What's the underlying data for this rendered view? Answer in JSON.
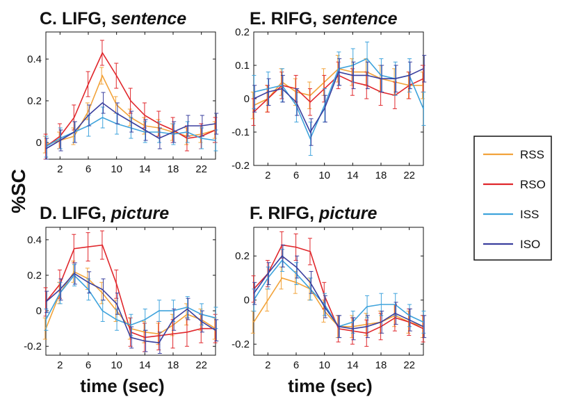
{
  "figure": {
    "ylabel": "%SC",
    "xlabel": "time (sec)",
    "legend": {
      "placement": "right",
      "entries": [
        "RSS",
        "RSO",
        "ISS",
        "ISO"
      ]
    }
  },
  "colors": {
    "RSS": "#f2a33a",
    "RSO": "#e0262b",
    "ISS": "#3ea3dc",
    "ISO": "#3a3f9e"
  },
  "chart_data": [
    {
      "type": "line",
      "title_main": "C.  LIFG, ",
      "title_italic": "sentence",
      "xlim": [
        0,
        24
      ],
      "ylim": [
        -0.08,
        0.53
      ],
      "xticks": [
        2,
        6,
        10,
        14,
        18,
        22
      ],
      "yticks": [
        0,
        0.2,
        0.4
      ],
      "ytick_labels": [
        "0",
        "0.2",
        "0.4"
      ],
      "x": [
        0,
        2,
        4,
        6,
        8,
        10,
        12,
        14,
        16,
        18,
        20,
        22,
        24
      ],
      "series": [
        {
          "name": "RSS",
          "values": [
            -0.01,
            0.01,
            0.03,
            0.15,
            0.32,
            0.18,
            0.12,
            0.08,
            0.07,
            0.05,
            0.03,
            0.04,
            0.06
          ],
          "err": 0.04
        },
        {
          "name": "RSO",
          "values": [
            -0.02,
            0.03,
            0.12,
            0.28,
            0.43,
            0.32,
            0.2,
            0.13,
            0.09,
            0.06,
            0.02,
            0.03,
            0.06
          ],
          "err": 0.06
        },
        {
          "name": "ISS",
          "values": [
            -0.02,
            0.02,
            0.05,
            0.08,
            0.12,
            0.09,
            0.07,
            0.05,
            0.05,
            0.04,
            0.05,
            0.02,
            0.01
          ],
          "err": 0.05
        },
        {
          "name": "ISO",
          "values": [
            -0.03,
            0.01,
            0.05,
            0.13,
            0.19,
            0.14,
            0.1,
            0.06,
            0.02,
            0.05,
            0.08,
            0.08,
            0.09
          ],
          "err": 0.05
        }
      ]
    },
    {
      "type": "line",
      "title_main": "E.  RIFG, ",
      "title_italic": "sentence",
      "xlim": [
        0,
        24
      ],
      "ylim": [
        -0.2,
        0.2
      ],
      "xticks": [
        2,
        6,
        10,
        14,
        18,
        22
      ],
      "yticks": [
        -0.2,
        -0.1,
        0,
        0.1,
        0.2
      ],
      "ytick_labels": [
        "-0.2",
        "-0.1",
        "0",
        "0.1",
        "0.2"
      ],
      "x": [
        0,
        2,
        4,
        6,
        8,
        10,
        12,
        14,
        16,
        18,
        20,
        22,
        24
      ],
      "series": [
        {
          "name": "RSS",
          "values": [
            -0.02,
            0.0,
            0.05,
            0.02,
            0.01,
            0.05,
            0.09,
            0.08,
            0.08,
            0.06,
            0.05,
            0.04,
            0.04
          ],
          "err": 0.04
        },
        {
          "name": "RSO",
          "values": [
            -0.04,
            0.0,
            0.04,
            0.03,
            -0.01,
            0.03,
            0.07,
            0.05,
            0.04,
            0.02,
            0.01,
            0.04,
            0.06
          ],
          "err": 0.04
        },
        {
          "name": "ISS",
          "values": [
            0.02,
            0.03,
            0.04,
            -0.02,
            -0.12,
            -0.02,
            0.09,
            0.1,
            0.12,
            0.07,
            0.06,
            0.07,
            -0.03
          ],
          "err": 0.05
        },
        {
          "name": "ISO",
          "values": [
            0.0,
            0.02,
            0.03,
            -0.01,
            -0.1,
            -0.03,
            0.08,
            0.07,
            0.07,
            0.06,
            0.06,
            0.07,
            0.09
          ],
          "err": 0.04
        }
      ]
    },
    {
      "type": "line",
      "title_main": "D.  LIFG, ",
      "title_italic": "picture",
      "xlim": [
        0,
        24
      ],
      "ylim": [
        -0.25,
        0.47
      ],
      "xticks": [
        2,
        6,
        10,
        14,
        18,
        22
      ],
      "yticks": [
        -0.2,
        0,
        0.2,
        0.4
      ],
      "ytick_labels": [
        "-0.2",
        "0",
        "0.2",
        "0.4"
      ],
      "x": [
        0,
        2,
        4,
        6,
        8,
        10,
        12,
        14,
        16,
        18,
        20,
        22,
        24
      ],
      "series": [
        {
          "name": "RSS",
          "values": [
            -0.1,
            0.1,
            0.22,
            0.18,
            0.1,
            0.0,
            -0.1,
            -0.12,
            -0.13,
            -0.08,
            -0.02,
            -0.05,
            -0.1
          ],
          "err": 0.06
        },
        {
          "name": "RSO",
          "values": [
            0.05,
            0.15,
            0.35,
            0.36,
            0.37,
            0.15,
            -0.12,
            -0.15,
            -0.14,
            -0.13,
            -0.12,
            -0.1,
            -0.1
          ],
          "err": 0.08
        },
        {
          "name": "ISS",
          "values": [
            -0.05,
            0.1,
            0.2,
            0.12,
            0.0,
            -0.05,
            -0.08,
            -0.05,
            0.0,
            0.0,
            0.02,
            -0.02,
            -0.04
          ],
          "err": 0.06
        },
        {
          "name": "ISO",
          "values": [
            0.05,
            0.12,
            0.21,
            0.16,
            0.12,
            0.04,
            -0.15,
            -0.17,
            -0.18,
            -0.05,
            0.01,
            -0.06,
            -0.11
          ],
          "err": 0.06
        }
      ]
    },
    {
      "type": "line",
      "title_main": "F.  RIFG, ",
      "title_italic": "picture",
      "xlim": [
        0,
        24
      ],
      "ylim": [
        -0.25,
        0.33
      ],
      "xticks": [
        2,
        6,
        10,
        14,
        18,
        22
      ],
      "yticks": [
        -0.2,
        0,
        0.2
      ],
      "ytick_labels": [
        "-0.2",
        "0",
        "0.2"
      ],
      "x": [
        0,
        2,
        4,
        6,
        8,
        10,
        12,
        14,
        16,
        18,
        20,
        22,
        24
      ],
      "series": [
        {
          "name": "RSS",
          "values": [
            -0.1,
            0.0,
            0.1,
            0.08,
            0.05,
            -0.05,
            -0.12,
            -0.12,
            -0.11,
            -0.1,
            -0.07,
            -0.1,
            -0.12
          ],
          "err": 0.05
        },
        {
          "name": "RSO",
          "values": [
            0.05,
            0.12,
            0.25,
            0.24,
            0.22,
            0.02,
            -0.13,
            -0.14,
            -0.15,
            -0.12,
            -0.08,
            -0.1,
            -0.13
          ],
          "err": 0.06
        },
        {
          "name": "ISS",
          "values": [
            0.0,
            0.1,
            0.18,
            0.12,
            0.05,
            -0.02,
            -0.12,
            -0.1,
            -0.03,
            -0.02,
            -0.02,
            -0.07,
            -0.1
          ],
          "err": 0.05
        },
        {
          "name": "ISO",
          "values": [
            0.03,
            0.12,
            0.2,
            0.15,
            0.08,
            -0.03,
            -0.12,
            -0.13,
            -0.12,
            -0.1,
            -0.06,
            -0.09,
            -0.12
          ],
          "err": 0.05
        }
      ]
    }
  ]
}
